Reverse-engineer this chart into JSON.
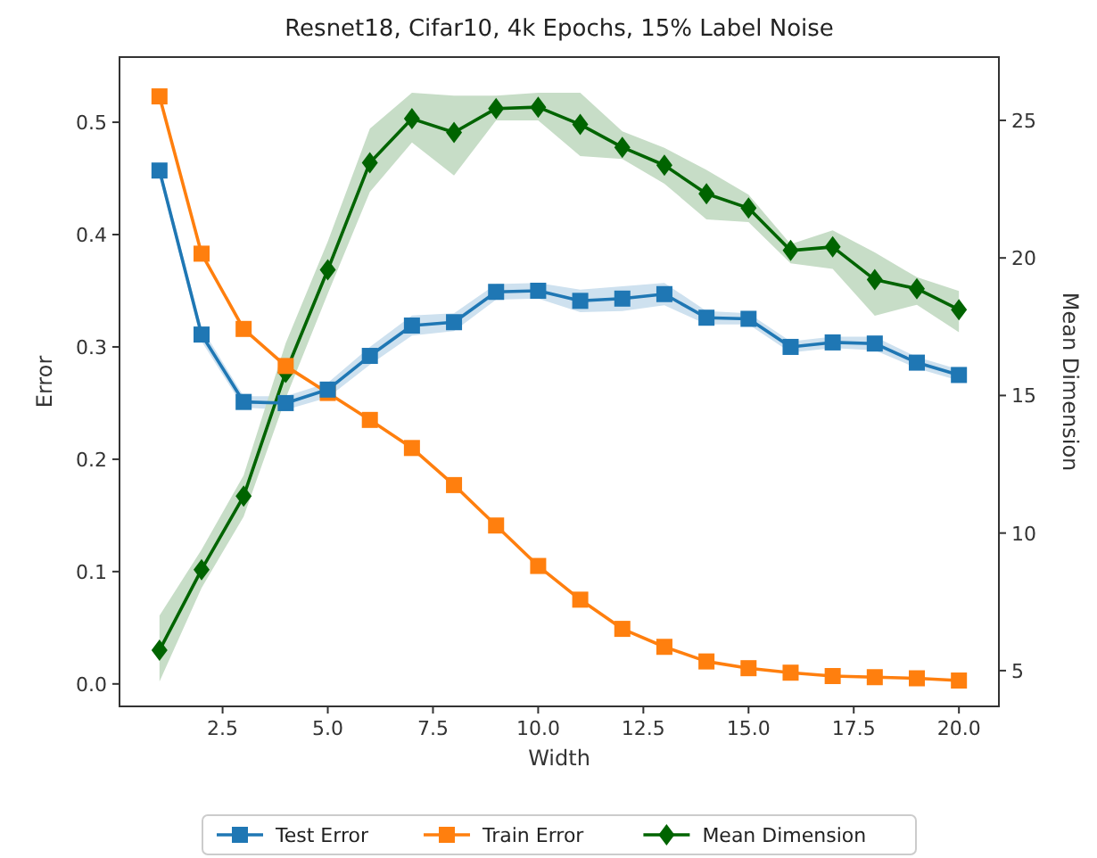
{
  "chart_data": {
    "type": "line",
    "title": "Resnet18, Cifar10, 4k Epochs, 15% Label Noise",
    "xlabel": "Width",
    "ylabel": "Error",
    "y2label": "Mean Dimension",
    "x": [
      1,
      2,
      3,
      4,
      5,
      6,
      7,
      8,
      9,
      10,
      11,
      12,
      13,
      14,
      15,
      16,
      17,
      18,
      19,
      20
    ],
    "xlim": [
      0.05,
      20.95
    ],
    "xticks": [
      {
        "value": 2.5,
        "label": "2.5"
      },
      {
        "value": 5,
        "label": "5.0"
      },
      {
        "value": 7.5,
        "label": "7.5"
      },
      {
        "value": 10,
        "label": "10.0"
      },
      {
        "value": 12.5,
        "label": "12.5"
      },
      {
        "value": 15,
        "label": "15.0"
      },
      {
        "value": 17.5,
        "label": "17.5"
      },
      {
        "value": 20,
        "label": "20.0"
      }
    ],
    "ylim": [
      -0.02,
      0.558
    ],
    "yticks": [
      {
        "value": 0,
        "label": "0.0"
      },
      0.1,
      0.2,
      0.3,
      0.4,
      0.5
    ],
    "y2lim": [
      3.7,
      27.3
    ],
    "y2ticks": [
      5,
      10,
      15,
      20,
      25
    ],
    "legend": "bottom",
    "series": [
      {
        "name": "Test Error",
        "color": "#1f77b4",
        "marker": "square",
        "values": [
          0.457,
          0.311,
          0.251,
          0.25,
          0.262,
          0.292,
          0.319,
          0.322,
          0.349,
          0.35,
          0.341,
          0.343,
          0.347,
          0.326,
          0.325,
          0.3,
          0.304,
          0.303,
          0.286,
          0.275
        ],
        "lower": [
          0.452,
          0.305,
          0.246,
          0.244,
          0.255,
          0.284,
          0.31,
          0.314,
          0.342,
          0.343,
          0.331,
          0.332,
          0.337,
          0.32,
          0.32,
          0.295,
          0.299,
          0.297,
          0.281,
          0.27
        ],
        "upper": [
          0.462,
          0.317,
          0.256,
          0.256,
          0.268,
          0.3,
          0.328,
          0.33,
          0.356,
          0.357,
          0.351,
          0.354,
          0.357,
          0.332,
          0.33,
          0.305,
          0.309,
          0.309,
          0.291,
          0.28
        ]
      },
      {
        "name": "Train Error",
        "color": "#ff7f0e",
        "marker": "square",
        "values": [
          0.523,
          0.383,
          0.316,
          0.283,
          0.259,
          0.235,
          0.21,
          0.177,
          0.141,
          0.105,
          0.075,
          0.049,
          0.033,
          0.02,
          0.014,
          0.01,
          0.007,
          0.006,
          0.005,
          0.003
        ]
      },
      {
        "name": "Mean Dimension",
        "color": "#006400",
        "marker": "diamond",
        "axis": "y2",
        "values": [
          5.74,
          8.67,
          11.34,
          15.84,
          19.57,
          23.46,
          25.06,
          24.56,
          25.43,
          25.48,
          24.85,
          24.02,
          23.37,
          22.33,
          21.81,
          20.27,
          20.4,
          19.21,
          18.88,
          18.12
        ],
        "lower": [
          4.6,
          8.0,
          10.6,
          14.9,
          18.7,
          22.4,
          24.2,
          23.0,
          25.0,
          25.0,
          23.7,
          23.6,
          22.7,
          21.4,
          21.3,
          19.8,
          19.6,
          17.9,
          18.3,
          17.3
        ],
        "upper": [
          7.0,
          9.4,
          12.1,
          16.9,
          20.6,
          24.7,
          26.0,
          25.9,
          25.9,
          26.0,
          26.0,
          24.6,
          24.0,
          23.2,
          22.3,
          20.5,
          21.0,
          20.2,
          19.3,
          18.8
        ]
      }
    ]
  }
}
